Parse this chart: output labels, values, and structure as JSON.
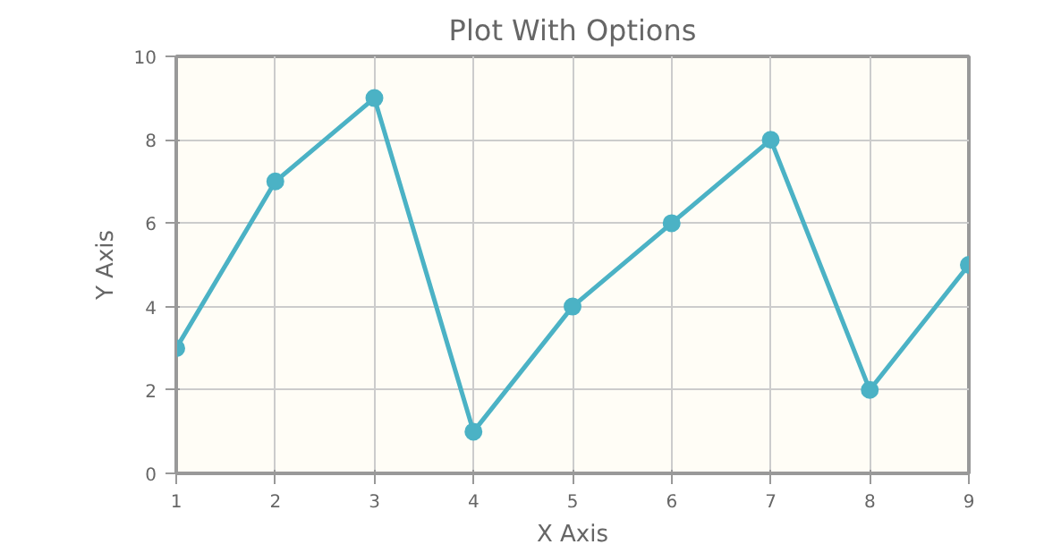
{
  "chart_data": {
    "type": "line",
    "title": "Plot With Options",
    "xlabel": "X Axis",
    "ylabel": "Y Axis",
    "x": [
      1,
      2,
      3,
      4,
      5,
      6,
      7,
      8,
      9
    ],
    "series": [
      {
        "color": "#4bb2c5",
        "values": [
          3,
          7,
          9,
          1,
          4,
          6,
          8,
          2,
          5
        ]
      }
    ],
    "xlim": [
      1,
      9
    ],
    "ylim": [
      0,
      10
    ],
    "xticks": [
      1,
      2,
      3,
      4,
      5,
      6,
      7,
      8,
      9
    ],
    "yticks": [
      0,
      2,
      4,
      6,
      8,
      10
    ],
    "grid": true,
    "marker": "circle",
    "line_style": "solid"
  }
}
